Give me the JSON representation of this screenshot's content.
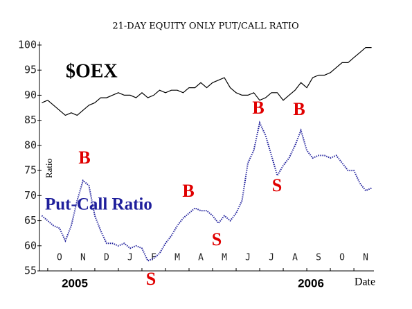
{
  "chart_data": {
    "type": "line",
    "title": "21-DAY EQUITY ONLY PUT/CALL RATIO",
    "y_label": "Ratio",
    "x_label": "Date",
    "year_labels": [
      "2005",
      "2006"
    ],
    "annotations": [
      "B",
      "S",
      "B",
      "S",
      "B",
      "S",
      "B"
    ],
    "xlim": [
      -0.85,
      13.35
    ],
    "xticks": [
      {
        "value": 0,
        "label": "O"
      },
      {
        "value": 1,
        "label": "N"
      },
      {
        "value": 2,
        "label": "D"
      },
      {
        "value": 3,
        "label": "J"
      },
      {
        "value": 4,
        "label": "F"
      },
      {
        "value": 5,
        "label": "M"
      },
      {
        "value": 6,
        "label": "A"
      },
      {
        "value": 7,
        "label": "M"
      },
      {
        "value": 8,
        "label": "J"
      },
      {
        "value": 9,
        "label": "J"
      },
      {
        "value": 10,
        "label": "A"
      },
      {
        "value": 11,
        "label": "S"
      },
      {
        "value": 12,
        "label": "O"
      },
      {
        "value": 13,
        "label": "N"
      }
    ],
    "ylim": [
      55,
      100
    ],
    "yticks": [
      55,
      60,
      65,
      70,
      75,
      80,
      85,
      90,
      95,
      100
    ],
    "x": [
      -0.75,
      -0.5,
      -0.25,
      0,
      0.25,
      0.5,
      0.75,
      1,
      1.25,
      1.5,
      1.75,
      2,
      2.25,
      2.5,
      2.75,
      3,
      3.25,
      3.5,
      3.75,
      4,
      4.25,
      4.5,
      4.75,
      5,
      5.25,
      5.5,
      5.75,
      6,
      6.25,
      6.5,
      6.75,
      7,
      7.25,
      7.5,
      7.75,
      8,
      8.25,
      8.5,
      8.75,
      9,
      9.25,
      9.5,
      9.75,
      10,
      10.25,
      10.5,
      10.75,
      11,
      11.25,
      11.5,
      11.75,
      12,
      12.25,
      12.5,
      12.75,
      13,
      13.25
    ],
    "series": [
      {
        "name": "$OEX",
        "color": "#000000",
        "dotted": false,
        "values": [
          88.5,
          89,
          88,
          87,
          86,
          86.5,
          86,
          87,
          88,
          88.5,
          89.5,
          89.5,
          90,
          90.5,
          90,
          90,
          89.5,
          90.5,
          89.5,
          90,
          91,
          90.5,
          91,
          91,
          90.5,
          91.5,
          91.5,
          92.5,
          91.5,
          92.5,
          93,
          93.5,
          91.5,
          90.5,
          90,
          90,
          90.5,
          89,
          89.5,
          90.5,
          90.5,
          89,
          90,
          91,
          92.5,
          91.5,
          93.5,
          94,
          94,
          94.5,
          95.5,
          96.5,
          96.5,
          97.5,
          98.5,
          99.5,
          99.5
        ]
      },
      {
        "name": "Put-Call Ratio",
        "color": "#1f1f9c",
        "dotted": true,
        "values": [
          66,
          65,
          64,
          63.5,
          61,
          64,
          69,
          73,
          72,
          66,
          63,
          60.5,
          60.5,
          60,
          60.5,
          59.5,
          60,
          59.5,
          57,
          57.5,
          58.5,
          60.5,
          62,
          64,
          65.5,
          66.5,
          67.5,
          67,
          67,
          66,
          64.5,
          66,
          65,
          66.5,
          69,
          76.5,
          79,
          84.5,
          82,
          78,
          74,
          76,
          77.5,
          80,
          83,
          79,
          77.5,
          78,
          78,
          77.5,
          78,
          76.5,
          75,
          75,
          72.5,
          71,
          71.5
        ]
      }
    ]
  }
}
